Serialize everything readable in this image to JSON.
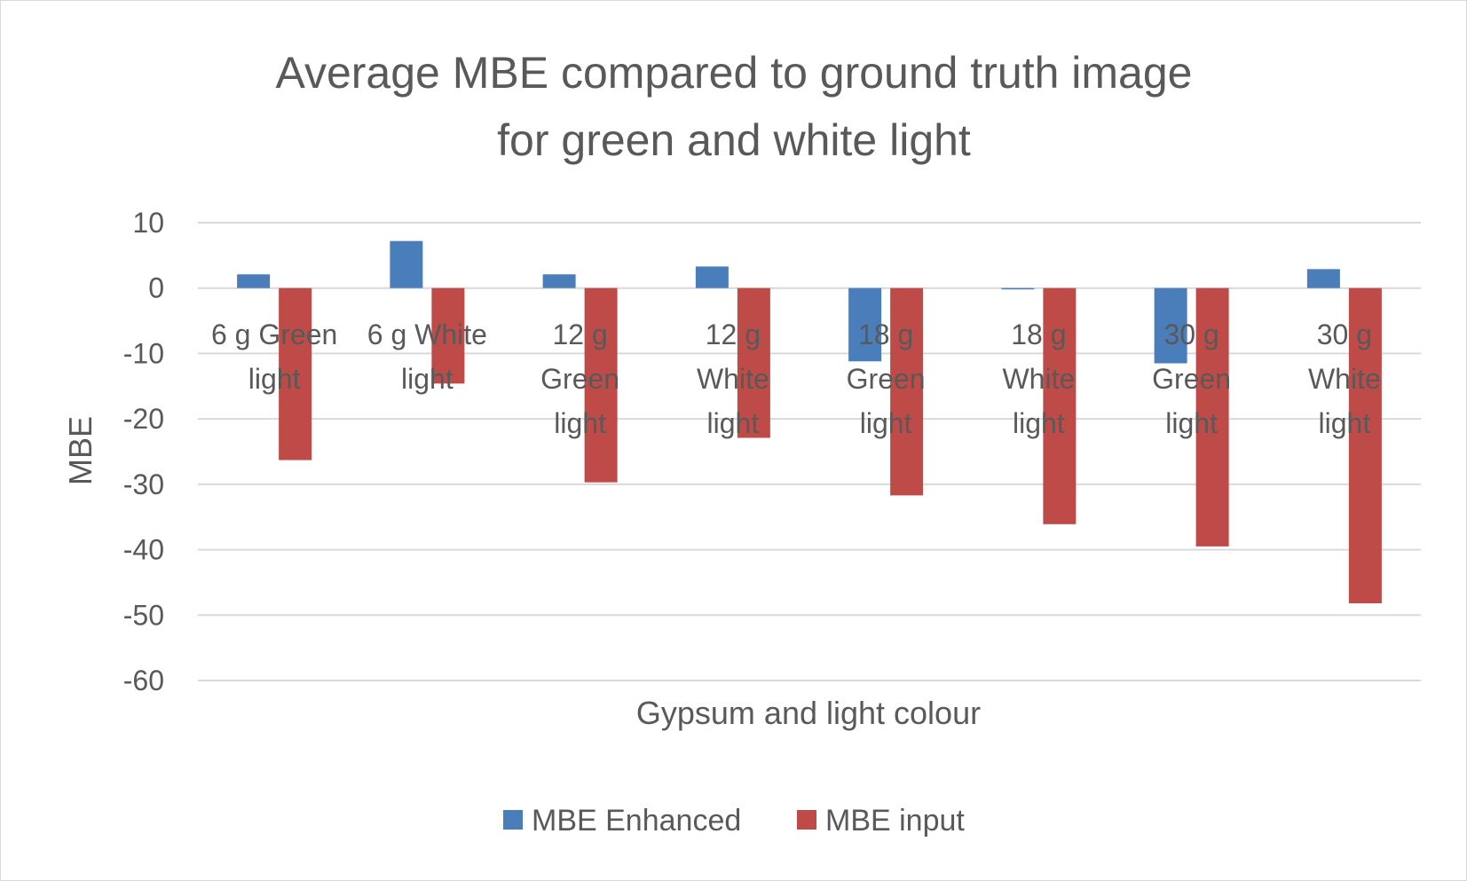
{
  "chart_data": {
    "type": "bar",
    "title_lines": [
      "Average MBE compared to ground truth image",
      "for green and white light"
    ],
    "xlabel": "Gypsum and light colour",
    "ylabel": "MBE",
    "ylim": [
      -60,
      10
    ],
    "yticks": [
      10,
      0,
      -10,
      -20,
      -30,
      -40,
      -50,
      -60
    ],
    "grid": true,
    "legend_position": "bottom",
    "categories": [
      [
        "6 g Green",
        "light"
      ],
      [
        "6 g White",
        "light"
      ],
      [
        "12 g",
        "Green",
        "light"
      ],
      [
        "12 g",
        "White",
        "light"
      ],
      [
        "18 g",
        "Green",
        "light"
      ],
      [
        "18 g",
        "White",
        "light"
      ],
      [
        "30 g",
        "Green",
        "light"
      ],
      [
        "30 g",
        "White",
        "light"
      ]
    ],
    "series": [
      {
        "name": "MBE Enhanced",
        "color": "#4a7ebb",
        "values": [
          2.1,
          7.2,
          2.1,
          3.3,
          -11.2,
          -0.2,
          -11.5,
          2.9
        ]
      },
      {
        "name": "MBE input",
        "color": "#be4b48",
        "values": [
          -26.3,
          -14.6,
          -29.7,
          -22.9,
          -31.7,
          -36.1,
          -39.5,
          -48.2
        ]
      }
    ]
  }
}
